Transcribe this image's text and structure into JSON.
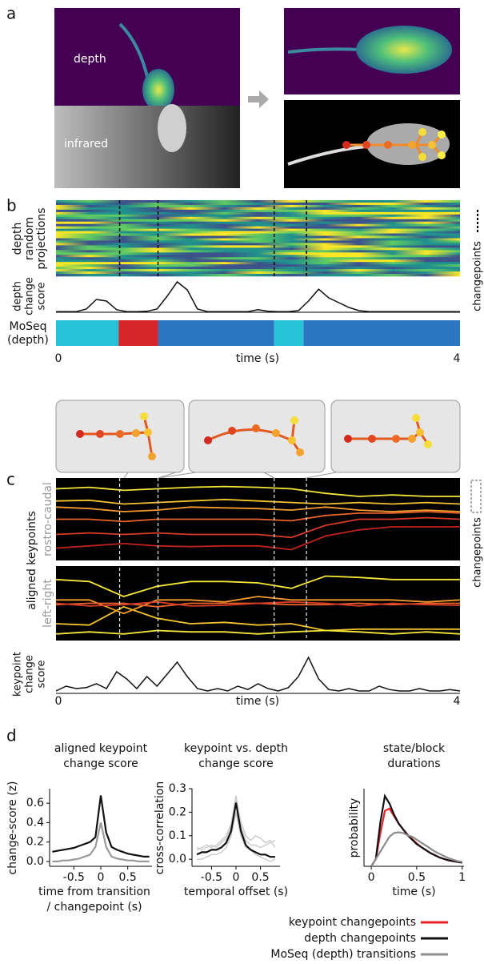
{
  "panel_labels": [
    "a",
    "b",
    "c",
    "d"
  ],
  "panel_a": {
    "depth_label": "depth",
    "infrared_label": "infrared"
  },
  "chart_data": [
    {
      "type": "changepoint",
      "heatmap_label": [
        "depth",
        "random",
        "projections"
      ],
      "ylabel": [
        "depth",
        "change",
        "score"
      ],
      "track_label": [
        "MoSeq",
        "(depth)"
      ],
      "x": [
        0,
        0.1,
        0.2,
        0.3,
        0.4,
        0.5,
        0.6,
        0.7,
        0.8,
        0.9,
        1,
        1.1,
        1.2,
        1.3,
        1.4,
        1.5,
        1.6,
        1.7,
        1.8,
        1.9,
        2,
        2.1,
        2.2,
        2.3,
        2.4,
        2.5,
        2.6,
        2.7,
        2.8,
        2.9,
        3,
        3.1,
        3.2,
        3.3,
        3.4,
        3.5,
        3.6,
        3.7,
        3.8,
        3.9,
        4
      ],
      "values": [
        0.02,
        0.02,
        0.02,
        0.1,
        0.4,
        0.35,
        0.08,
        0.02,
        0.02,
        0.03,
        0.1,
        0.5,
        0.95,
        0.7,
        0.1,
        0.02,
        0.02,
        0.02,
        0.02,
        0.02,
        0.08,
        0.03,
        0.02,
        0.02,
        0.05,
        0.35,
        0.72,
        0.45,
        0.3,
        0.15,
        0.05,
        0.02,
        0.02,
        0.02,
        0.02,
        0.02,
        0.02,
        0.02,
        0.02,
        0.02,
        0.02
      ],
      "color": "#111111",
      "segments": [
        {
          "start": 0,
          "end": 0.62,
          "color": "#27c1d9"
        },
        {
          "start": 0.62,
          "end": 1.01,
          "color": "#d7262b"
        },
        {
          "start": 1.01,
          "end": 2.16,
          "color": "#2a76c0"
        },
        {
          "start": 2.16,
          "end": 2.45,
          "color": "#27c1d9"
        },
        {
          "start": 2.45,
          "end": 4,
          "color": "#2a76c0"
        }
      ],
      "changepoints": [
        0.63,
        1.01,
        2.16,
        2.48
      ],
      "changepoints_label": "changepoints",
      "xlabel": "time (s)",
      "xlim": [
        0,
        4
      ],
      "xticks": [
        0,
        4
      ]
    },
    {
      "type": "keypoints",
      "keypoint_label": "aligned keypoints",
      "panels": [
        {
          "label": "rostro-caudal",
          "x": [
            0,
            0.33,
            0.67,
            1,
            1.33,
            1.67,
            2,
            2.33,
            2.67,
            3,
            3.33,
            3.67,
            4
          ],
          "series": [
            {
              "color": "#f5e63a",
              "values": [
                0.9,
                0.92,
                0.88,
                0.9,
                0.92,
                0.93,
                0.92,
                0.9,
                0.84,
                0.8,
                0.82,
                0.8,
                0.8
              ]
            },
            {
              "color": "#f4c430",
              "values": [
                0.74,
                0.75,
                0.7,
                0.72,
                0.74,
                0.76,
                0.74,
                0.72,
                0.7,
                0.72,
                0.7,
                0.72,
                0.7
              ]
            },
            {
              "color": "#f29a2e",
              "values": [
                0.66,
                0.64,
                0.6,
                0.62,
                0.66,
                0.65,
                0.64,
                0.62,
                0.66,
                0.62,
                0.6,
                0.62,
                0.6
              ]
            },
            {
              "color": "#e8622a",
              "values": [
                0.5,
                0.5,
                0.47,
                0.5,
                0.5,
                0.5,
                0.5,
                0.48,
                0.55,
                0.58,
                0.58,
                0.6,
                0.58
              ]
            },
            {
              "color": "#d73a26",
              "values": [
                0.3,
                0.32,
                0.3,
                0.32,
                0.3,
                0.3,
                0.3,
                0.26,
                0.42,
                0.5,
                0.5,
                0.52,
                0.5
              ]
            },
            {
              "color": "#c0221e",
              "values": [
                0.12,
                0.15,
                0.18,
                0.15,
                0.14,
                0.15,
                0.15,
                0.1,
                0.28,
                0.36,
                0.4,
                0.4,
                0.4
              ]
            }
          ]
        },
        {
          "label": "left-right",
          "x": [
            0,
            0.33,
            0.67,
            1,
            1.33,
            1.67,
            2,
            2.33,
            2.67,
            3,
            3.33,
            3.67,
            4
          ],
          "series": [
            {
              "color": "#f5e63a",
              "values": [
                0.85,
                0.82,
                0.6,
                0.75,
                0.82,
                0.82,
                0.8,
                0.72,
                0.9,
                0.88,
                0.85,
                0.85,
                0.85
              ]
            },
            {
              "color": "#f4c430",
              "values": [
                0.2,
                0.18,
                0.45,
                0.28,
                0.2,
                0.22,
                0.18,
                0.2,
                0.1,
                0.12,
                0.12,
                0.12,
                0.12
              ]
            },
            {
              "color": "#f29a2e",
              "values": [
                0.55,
                0.55,
                0.35,
                0.55,
                0.55,
                0.52,
                0.6,
                0.55,
                0.55,
                0.55,
                0.55,
                0.52,
                0.55
              ]
            },
            {
              "color": "#e8622a",
              "values": [
                0.48,
                0.5,
                0.5,
                0.45,
                0.5,
                0.5,
                0.5,
                0.48,
                0.48,
                0.5,
                0.48,
                0.5,
                0.5
              ]
            },
            {
              "color": "#d73a26",
              "values": [
                0.5,
                0.46,
                0.48,
                0.52,
                0.46,
                0.47,
                0.5,
                0.52,
                0.5,
                0.46,
                0.5,
                0.48,
                0.47
              ]
            },
            {
              "color": "#f5e63a",
              "values": [
                0.05,
                0.08,
                0.05,
                0.1,
                0.08,
                0.08,
                0.05,
                0.08,
                0.1,
                0.08,
                0.05,
                0.08,
                0.05
              ]
            }
          ]
        }
      ],
      "ylabel": [
        "keypoint",
        "change",
        "score"
      ],
      "x": [
        0,
        0.1,
        0.2,
        0.3,
        0.4,
        0.5,
        0.6,
        0.7,
        0.8,
        0.9,
        1,
        1.1,
        1.2,
        1.3,
        1.4,
        1.5,
        1.6,
        1.7,
        1.8,
        1.9,
        2,
        2.1,
        2.2,
        2.3,
        2.4,
        2.5,
        2.6,
        2.7,
        2.8,
        2.9,
        3,
        3.1,
        3.2,
        3.3,
        3.4,
        3.5,
        3.6,
        3.7,
        3.8,
        3.9,
        4
      ],
      "values": [
        0.05,
        0.15,
        0.1,
        0.12,
        0.2,
        0.1,
        0.45,
        0.3,
        0.1,
        0.35,
        0.15,
        0.4,
        0.65,
        0.35,
        0.1,
        0.05,
        0.1,
        0.05,
        0.15,
        0.08,
        0.2,
        0.1,
        0.05,
        0.12,
        0.35,
        0.75,
        0.3,
        0.08,
        0.05,
        0.1,
        0.05,
        0.05,
        0.15,
        0.08,
        0.05,
        0.05,
        0.1,
        0.05,
        0.05,
        0.08,
        0.05
      ],
      "color": "#111111",
      "changepoints": [
        0.63,
        1.01,
        2.16,
        2.48
      ],
      "changepoints_label": "changepoints",
      "xlabel": "time (s)",
      "xlim": [
        0,
        4
      ],
      "xticks": [
        0,
        4
      ]
    },
    {
      "type": "line",
      "title": [
        "aligned keypoint",
        "change score"
      ],
      "ylabel": "change-score (z)",
      "xlabel": [
        "time from transition",
        "/ changepoint (s)"
      ],
      "x": [
        -0.9,
        -0.8,
        -0.7,
        -0.6,
        -0.5,
        -0.4,
        -0.3,
        -0.2,
        -0.1,
        0,
        0.1,
        0.2,
        0.3,
        0.4,
        0.5,
        0.6,
        0.7,
        0.8,
        0.9
      ],
      "series": [
        {
          "color": "#999999",
          "values": [
            0,
            0,
            0.01,
            0.01,
            0.02,
            0.03,
            0.05,
            0.07,
            0.15,
            0.4,
            0.15,
            0.05,
            0.03,
            0.02,
            0.01,
            0.01,
            0,
            0,
            0
          ]
        },
        {
          "color": "#111111",
          "values": [
            0.1,
            0.11,
            0.12,
            0.13,
            0.14,
            0.16,
            0.18,
            0.2,
            0.25,
            0.68,
            0.3,
            0.15,
            0.12,
            0.1,
            0.08,
            0.07,
            0.06,
            0.05,
            0.05
          ]
        }
      ],
      "xlim": [
        -0.95,
        0.95
      ],
      "ylim": [
        -0.05,
        0.75
      ],
      "xticks": [
        -0.5,
        0,
        0.5
      ],
      "yticks": [
        {
          "value": 0,
          "label": "0.0"
        },
        0.2,
        0.4,
        0.6
      ]
    },
    {
      "type": "line",
      "title": [
        "keypoint vs. depth",
        "change score"
      ],
      "ylabel": "cross-correlation",
      "xlabel": [
        "temporal offset (s)"
      ],
      "x": [
        -0.8,
        -0.7,
        -0.6,
        -0.5,
        -0.4,
        -0.3,
        -0.2,
        -0.1,
        0,
        0.1,
        0.2,
        0.3,
        0.4,
        0.5,
        0.6,
        0.7,
        0.8
      ],
      "series": [
        {
          "color": "#cccccc",
          "values": [
            0.04,
            0.05,
            0.06,
            0.05,
            0.06,
            0.08,
            0.1,
            0.15,
            0.27,
            0.14,
            0.08,
            0.06,
            0.06,
            0.05,
            0.06,
            0.07,
            0.08
          ]
        },
        {
          "color": "#cccccc",
          "values": [
            0,
            0,
            0.01,
            0.02,
            0.02,
            0.03,
            0.05,
            0.1,
            0.2,
            0.1,
            0.05,
            0.04,
            0.02,
            0.01,
            0,
            -0.01,
            0
          ]
        },
        {
          "color": "#cccccc",
          "values": [
            0.05,
            0.04,
            0.05,
            0.06,
            0.05,
            0.07,
            0.09,
            0.14,
            0.25,
            0.16,
            0.1,
            0.08,
            0.1,
            0.09,
            0.07,
            0.08,
            0.05
          ]
        },
        {
          "color": "#111111",
          "values": [
            0.02,
            0.03,
            0.03,
            0.04,
            0.04,
            0.05,
            0.07,
            0.12,
            0.24,
            0.12,
            0.06,
            0.04,
            0.03,
            0.02,
            0.02,
            0.01,
            0.01
          ]
        }
      ],
      "xlim": [
        -0.9,
        0.9
      ],
      "ylim": [
        -0.03,
        0.3
      ],
      "xticks": [
        -0.5,
        0,
        0.5
      ],
      "yticks": [
        {
          "value": 0,
          "label": "0.0"
        },
        0.1,
        0.2,
        0.3
      ]
    },
    {
      "type": "line",
      "title": [
        "state/block",
        "durations"
      ],
      "ylabel": "probability",
      "xlabel": [
        "time (s)"
      ],
      "x": [
        0,
        0.05,
        0.1,
        0.15,
        0.2,
        0.25,
        0.3,
        0.35,
        0.4,
        0.45,
        0.5,
        0.55,
        0.6,
        0.65,
        0.7,
        0.75,
        0.8,
        0.85,
        0.9,
        0.95,
        1
      ],
      "series": [
        {
          "name": "keypoint changepoints",
          "color": "#e8202a",
          "values": [
            0,
            0.1,
            0.45,
            0.75,
            0.78,
            0.68,
            0.58,
            0.5,
            0.43,
            0.37,
            0.31,
            0.26,
            0.22,
            0.18,
            0.15,
            0.12,
            0.1,
            0.08,
            0.07,
            0.06,
            0.05
          ]
        },
        {
          "name": "depth changepoints",
          "color": "#111111",
          "values": [
            0,
            0.1,
            0.6,
            0.95,
            0.85,
            0.7,
            0.58,
            0.5,
            0.42,
            0.36,
            0.3,
            0.26,
            0.22,
            0.18,
            0.15,
            0.12,
            0.1,
            0.08,
            0.07,
            0.06,
            0.05
          ]
        },
        {
          "name": "MoSeq (depth) transitions",
          "color": "#8c8c8c",
          "values": [
            0,
            0.1,
            0.2,
            0.3,
            0.4,
            0.45,
            0.46,
            0.45,
            0.42,
            0.4,
            0.36,
            0.32,
            0.28,
            0.24,
            0.2,
            0.17,
            0.14,
            0.11,
            0.09,
            0.07,
            0.06
          ]
        }
      ],
      "xlim": [
        -0.08,
        1.02
      ],
      "ylim": [
        0,
        1.05
      ],
      "xticks": [
        0,
        0.5,
        1
      ],
      "legend": "lower right"
    }
  ]
}
